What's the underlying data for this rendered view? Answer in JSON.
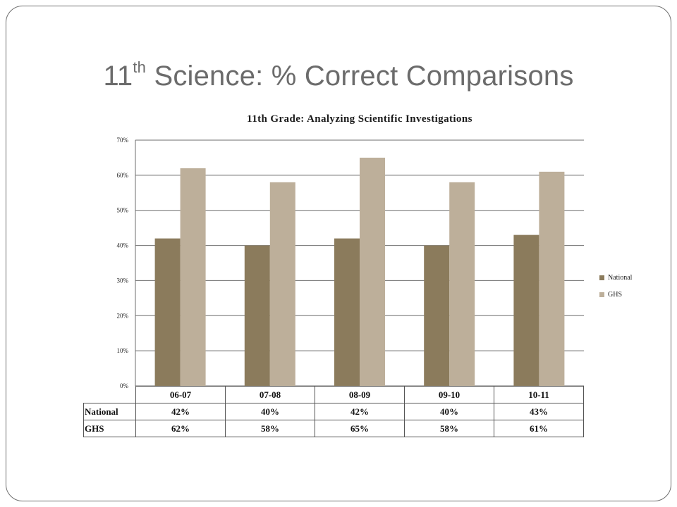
{
  "slide": {
    "title_main": "11",
    "title_sup": "th",
    "title_rest": " Science:  % Correct Comparisons"
  },
  "chart_data": {
    "type": "bar",
    "title": "11th Grade: Analyzing Scientific Investigations",
    "categories": [
      "06-07",
      "07-08",
      "08-09",
      "09-10",
      "10-11"
    ],
    "series": [
      {
        "name": "National",
        "values": [
          42,
          40,
          42,
          40,
          43
        ],
        "color": "#8b7b5c"
      },
      {
        "name": "GHS",
        "values": [
          62,
          58,
          65,
          58,
          61
        ],
        "color": "#bdaf9a"
      }
    ],
    "ylim": [
      0,
      70
    ],
    "yticks": [
      "0%",
      "10%",
      "20%",
      "30%",
      "40%",
      "50%",
      "60%",
      "70%"
    ],
    "grid": true,
    "legend_position": "right",
    "data_table": {
      "rows": [
        {
          "label": "National",
          "cells": [
            "42%",
            "40%",
            "42%",
            "40%",
            "43%"
          ]
        },
        {
          "label": "GHS",
          "cells": [
            "62%",
            "58%",
            "65%",
            "58%",
            "61%"
          ]
        }
      ]
    }
  }
}
